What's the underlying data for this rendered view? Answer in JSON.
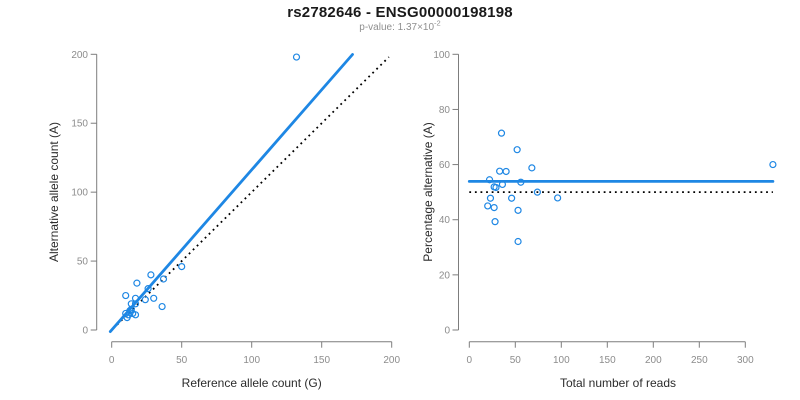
{
  "header": {
    "title": "rs2782646 - ENSG00000198198",
    "p_value_prefix": "p-value: 1.37×10",
    "p_value_exponent": "-2"
  },
  "colors": {
    "accent_blue": "#1E87E4",
    "identity_black": "#000000",
    "axis_line_gray": "#7d7d7d",
    "tick_label_gray": "#8c8c8c",
    "axis_title_dark": "#2b2b2b",
    "background": "#ffffff"
  },
  "chart_data": [
    {
      "type": "scatter",
      "panel": "allele-counts",
      "xlabel": "Reference allele count (G)",
      "ylabel": "Alternative allele count (A)",
      "xlim": [
        0,
        200
      ],
      "ylim": [
        0,
        200
      ],
      "xticks": [
        0,
        50,
        100,
        150,
        200
      ],
      "yticks": [
        0,
        50,
        100,
        150,
        200
      ],
      "grid": false,
      "marker": "open-circle",
      "points": [
        [
          10,
          25
        ],
        [
          18,
          34
        ],
        [
          28,
          40
        ],
        [
          17,
          23
        ],
        [
          14,
          19
        ],
        [
          17,
          19
        ],
        [
          26,
          30
        ],
        [
          10,
          12
        ],
        [
          13,
          14
        ],
        [
          14,
          15
        ],
        [
          37,
          37
        ],
        [
          24,
          22
        ],
        [
          50,
          46
        ],
        [
          12,
          11
        ],
        [
          11,
          9
        ],
        [
          15,
          12
        ],
        [
          17,
          11
        ],
        [
          30,
          23
        ],
        [
          36,
          17
        ],
        [
          132,
          198
        ]
      ],
      "regression_line": {
        "slope": 1.162,
        "intercept": 0,
        "x_start": -1,
        "x_end": 172,
        "style": "solid"
      },
      "identity_line": {
        "slope": 1,
        "intercept": 0,
        "x_start": 1,
        "x_end": 198,
        "style": "dotted"
      }
    },
    {
      "type": "scatter",
      "panel": "percentage-vs-reads",
      "xlabel": "Total number of reads",
      "ylabel": "Percentage alternative (A)",
      "xlim": [
        0,
        330
      ],
      "ylim": [
        0,
        100
      ],
      "xticks": [
        0,
        50,
        100,
        150,
        200,
        250,
        300
      ],
      "yticks": [
        0,
        20,
        40,
        60,
        80,
        100
      ],
      "grid": false,
      "marker": "open-circle",
      "points": [
        [
          35,
          71.4
        ],
        [
          52,
          65.4
        ],
        [
          68,
          58.8
        ],
        [
          40,
          57.5
        ],
        [
          33,
          57.6
        ],
        [
          36,
          52.8
        ],
        [
          56,
          53.6
        ],
        [
          22,
          54.5
        ],
        [
          27,
          51.9
        ],
        [
          29,
          51.7
        ],
        [
          74,
          50.0
        ],
        [
          46,
          47.8
        ],
        [
          96,
          47.9
        ],
        [
          23,
          47.8
        ],
        [
          20,
          45.0
        ],
        [
          27,
          44.4
        ],
        [
          28,
          39.3
        ],
        [
          53,
          43.4
        ],
        [
          53,
          32.1
        ],
        [
          330,
          60.0
        ]
      ],
      "mean_line": {
        "y": 53.9,
        "x_start": 0,
        "x_end": 330,
        "style": "solid"
      },
      "reference_line": {
        "y": 50,
        "x_start": 0,
        "x_end": 330,
        "style": "dotted"
      }
    }
  ]
}
